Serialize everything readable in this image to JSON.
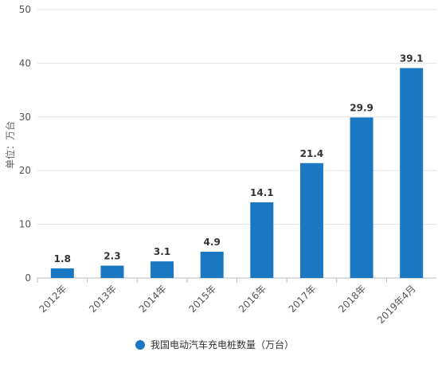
{
  "chart_data": {
    "type": "bar",
    "title": "",
    "xlabel": "",
    "ylabel": "单位：万台",
    "categories": [
      "2012年",
      "2013年",
      "2014年",
      "2015年",
      "2016年",
      "2017年",
      "2018年",
      "2019年4月"
    ],
    "series": [
      {
        "name": "我国电动汽车充电桩数量（万台）",
        "values": [
          1.8,
          2.3,
          3.1,
          4.9,
          14.1,
          21.4,
          29.9,
          39.1
        ],
        "color": "#1a78c2"
      }
    ],
    "ylim": [
      0,
      50
    ],
    "yticks": [
      0,
      10,
      20,
      30,
      40,
      50
    ],
    "grid": true,
    "legend_position": "bottom",
    "data_labels": true
  }
}
